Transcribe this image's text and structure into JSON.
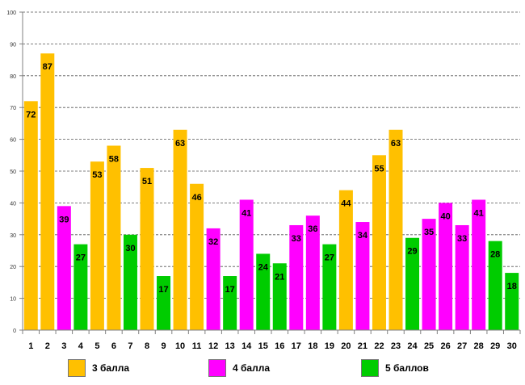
{
  "chart_data": {
    "type": "bar",
    "title": "",
    "xlabel": "",
    "ylabel": "",
    "ylim": [
      0,
      100
    ],
    "yticks": [
      0,
      10,
      20,
      30,
      40,
      50,
      60,
      70,
      80,
      90,
      100
    ],
    "grid": true,
    "legend_position": "bottom",
    "colors": {
      "3": "#FFC000",
      "4": "#FF00FF",
      "5": "#00CC00"
    },
    "legend": [
      {
        "key": "3",
        "label": "3 балла"
      },
      {
        "key": "4",
        "label": "4 балла"
      },
      {
        "key": "5",
        "label": "5 баллов"
      }
    ],
    "categories": [
      "1",
      "2",
      "3",
      "4",
      "5",
      "6",
      "7",
      "8",
      "9",
      "10",
      "11",
      "12",
      "13",
      "14",
      "15",
      "16",
      "17",
      "18",
      "19",
      "20",
      "21",
      "22",
      "23",
      "24",
      "25",
      "26",
      "27",
      "28",
      "29",
      "30"
    ],
    "values": [
      72,
      87,
      39,
      27,
      53,
      58,
      30,
      51,
      17,
      63,
      46,
      32,
      17,
      41,
      24,
      21,
      33,
      36,
      27,
      44,
      34,
      55,
      63,
      29,
      35,
      40,
      33,
      41,
      28,
      18
    ],
    "grades": [
      "3",
      "3",
      "4",
      "5",
      "3",
      "3",
      "5",
      "3",
      "5",
      "3",
      "3",
      "4",
      "5",
      "4",
      "5",
      "5",
      "4",
      "4",
      "5",
      "3",
      "4",
      "3",
      "3",
      "5",
      "4",
      "4",
      "4",
      "4",
      "5",
      "5"
    ]
  }
}
